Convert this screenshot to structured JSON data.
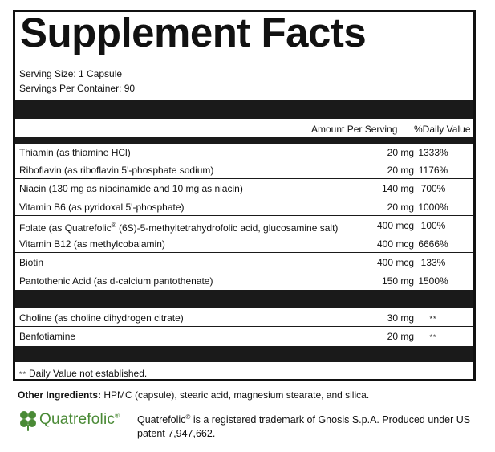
{
  "panel": {
    "title": "Supplement Facts",
    "serving_size": "Serving Size: 1 Capsule",
    "servings_per_container": "Servings Per Container: 90",
    "col_amount": "Amount Per Serving",
    "col_dv": "%Daily Value",
    "rows": [
      {
        "name": "Thiamin (as thiamine HCl)",
        "amount": "20 mg",
        "dv": "1333%"
      },
      {
        "name": "Riboflavin (as riboflavin 5'-phosphate sodium)",
        "amount": "20 mg",
        "dv": "1176%"
      },
      {
        "name": "Niacin (130 mg as niacinamide and 10 mg as niacin)",
        "amount": "140 mg",
        "dv": "700%"
      },
      {
        "name": "Vitamin B6 (as pyridoxal 5'-phosphate)",
        "amount": "20 mg",
        "dv": "1000%"
      },
      {
        "name_prefix": "Folate (as Quatrefolic",
        "name_reg": "®",
        "name_suffix": " (6S)-5-methyltetrahydrofolic acid, glucosamine salt)",
        "amount": "400 mcg",
        "dv": "100%"
      },
      {
        "name": "Vitamin B12 (as methylcobalamin)",
        "amount": "400 mcg",
        "dv": "6666%"
      },
      {
        "name": "Biotin",
        "amount": "400 mcg",
        "dv": "133%"
      },
      {
        "name": "Pantothenic Acid (as d-calcium pantothenate)",
        "amount": "150 mg",
        "dv": "1500%"
      }
    ],
    "rows2": [
      {
        "name": "Choline (as choline dihydrogen citrate)",
        "amount": "30 mg",
        "dv": "**"
      },
      {
        "name": "Benfotiamine",
        "amount": "20 mg",
        "dv": "**"
      }
    ],
    "footnote_star": "**",
    "footnote_text": "Daily Value not established."
  },
  "other_ingredients": {
    "label": "Other Ingredients:",
    "text": " HPMC (capsule), stearic acid, magnesium stearate, and silica."
  },
  "trademark": {
    "logo_text": "Quatrefolic",
    "logo_reg": "®",
    "line_prefix": "Quatrefolic",
    "line_reg": "®",
    "line_suffix": " is a registered trademark of Gnosis S.p.A. Produced under US patent 7,947,662."
  },
  "colors": {
    "ink": "#111111",
    "logo_green": "#4a8a36"
  }
}
